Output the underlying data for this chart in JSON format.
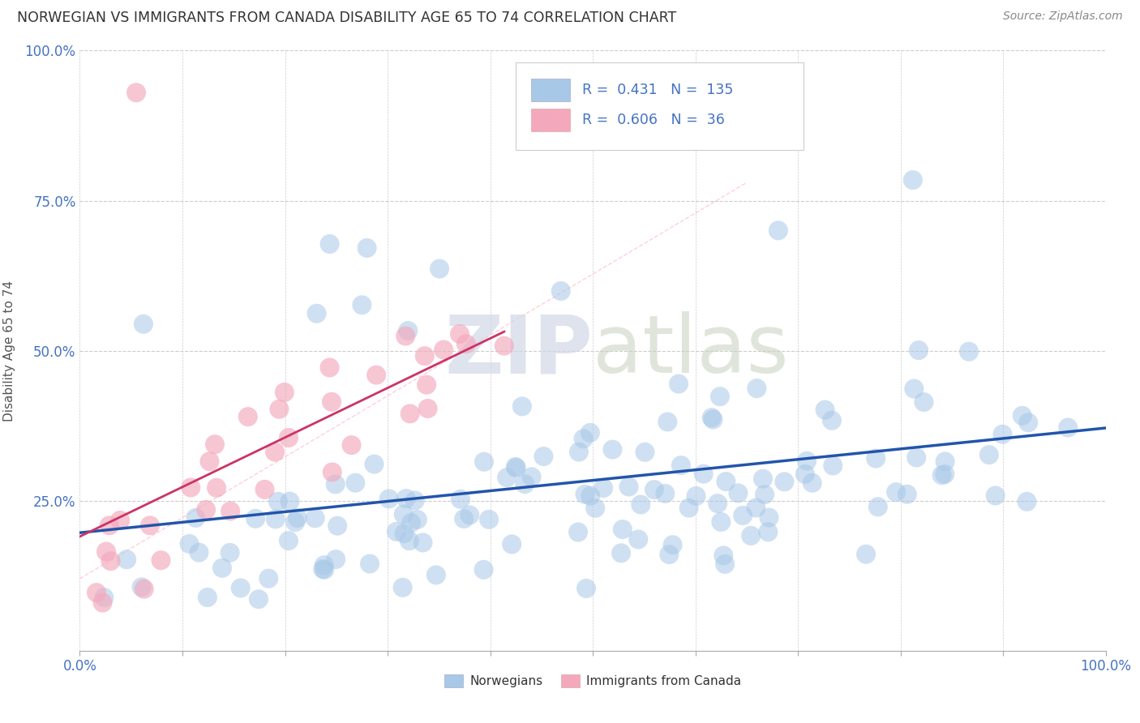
{
  "title": "NORWEGIAN VS IMMIGRANTS FROM CANADA DISABILITY AGE 65 TO 74 CORRELATION CHART",
  "source": "Source: ZipAtlas.com",
  "ylabel": "Disability Age 65 to 74",
  "xlim": [
    0,
    1.0
  ],
  "ylim": [
    0,
    1.0
  ],
  "legend_blue_r": "0.431",
  "legend_blue_n": "135",
  "legend_pink_r": "0.606",
  "legend_pink_n": "36",
  "blue_color": "#a8c8e8",
  "pink_color": "#f4a8bc",
  "trend_blue": "#2255aa",
  "trend_pink": "#cc3366",
  "title_color": "#333333",
  "source_color": "#888888",
  "label_color": "#4472c4",
  "axis_label_color": "#555555",
  "background_color": "#ffffff",
  "grid_color": "#cccccc",
  "watermark_color": "#d0d8e8"
}
